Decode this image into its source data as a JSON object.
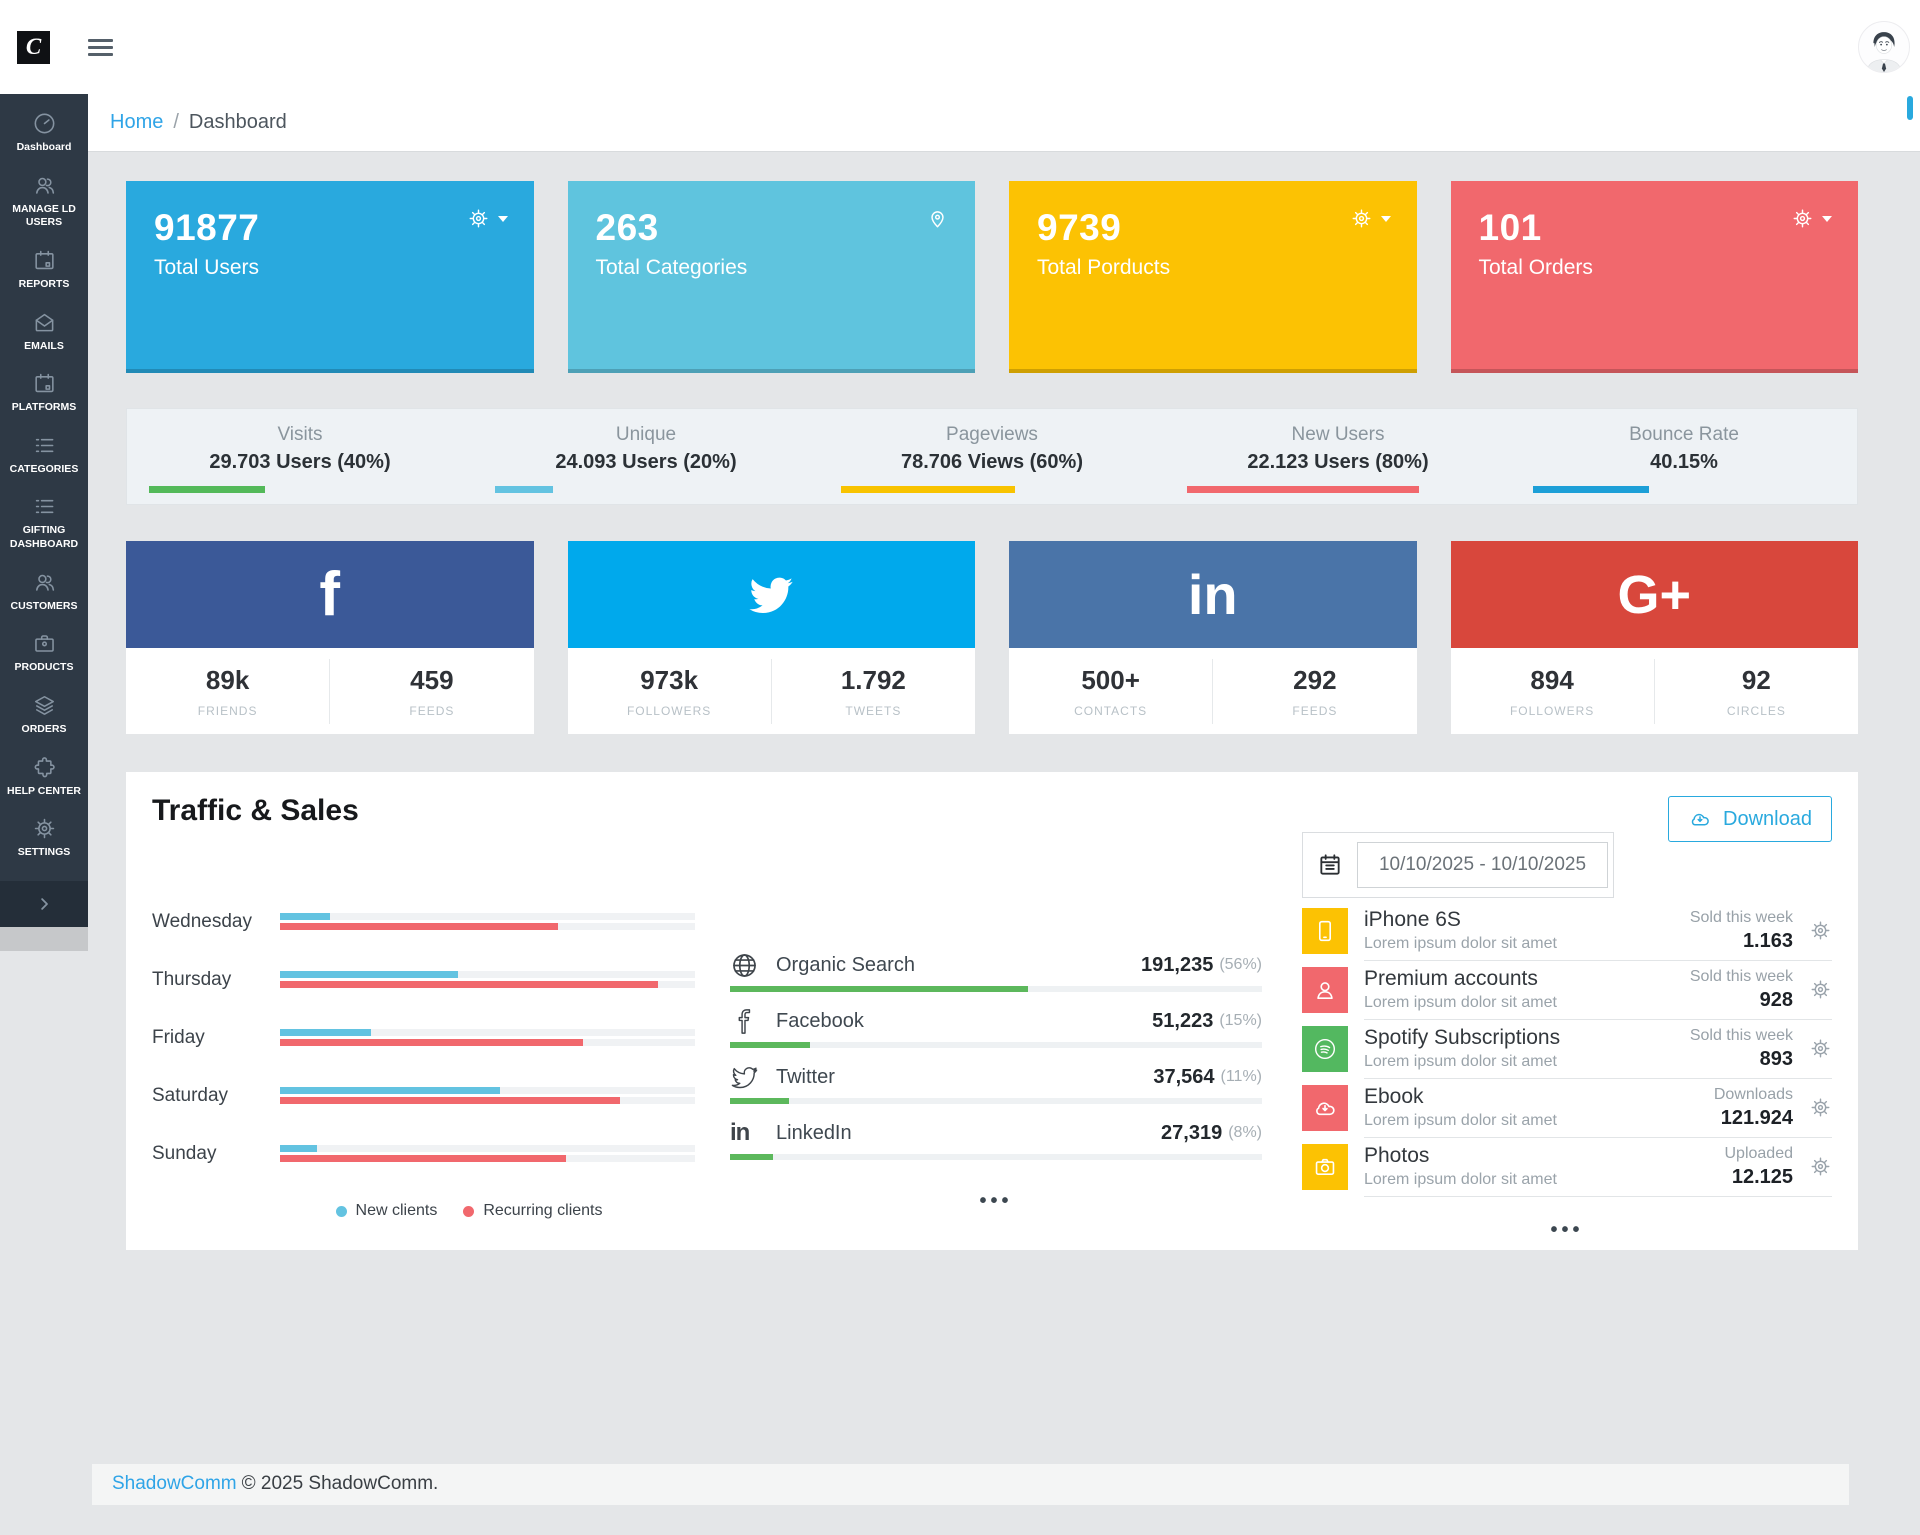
{
  "topbar": {
    "logo_letter": "C"
  },
  "breadcrumb": {
    "home": "Home",
    "separator": "/",
    "current": "Dashboard"
  },
  "sidebar": {
    "items": [
      {
        "label": "Dashboard"
      },
      {
        "label": "MANAGE LD USERS"
      },
      {
        "label": "REPORTS"
      },
      {
        "label": "EMAILS"
      },
      {
        "label": "PLATFORMS"
      },
      {
        "label": "CATEGORIES"
      },
      {
        "label": "GIFTING DASHBOARD"
      },
      {
        "label": "CUSTOMERS"
      },
      {
        "label": "PRODUCTS"
      },
      {
        "label": "ORDERS"
      },
      {
        "label": "HELP CENTER"
      },
      {
        "label": "SETTINGS"
      }
    ]
  },
  "colors": {
    "accent": "#29a9de",
    "chart_new": "#63c3e1",
    "chart_recurring": "#f1686d",
    "referral_bar": "#5cb85c"
  },
  "stat_cards": [
    {
      "value": "91877",
      "label": "Total Users",
      "color": "#29a9de"
    },
    {
      "value": "263",
      "label": "Total Categories",
      "color": "#5fc4de"
    },
    {
      "value": "9739",
      "label": "Total Porducts",
      "color": "#fcc203"
    },
    {
      "value": "101",
      "label": "Total Orders",
      "color": "#f1686d"
    }
  ],
  "metrics": [
    {
      "label": "Visits",
      "value": "29.703 Users (40%)",
      "pct": 40,
      "color": "#53b959"
    },
    {
      "label": "Unique",
      "value": "24.093 Users (20%)",
      "pct": 20,
      "color": "#63c3e1"
    },
    {
      "label": "Pageviews",
      "value": "78.706 Views (60%)",
      "pct": 60,
      "color": "#f8c300"
    },
    {
      "label": "New Users",
      "value": "22.123 Users (80%)",
      "pct": 80,
      "color": "#f1686d"
    },
    {
      "label": "Bounce Rate",
      "value": "40.15%",
      "pct": 40,
      "color": "#1c9fd7"
    }
  ],
  "social_cards": [
    {
      "network": "Facebook",
      "color": "#3b5998",
      "glyph": "f",
      "stats": [
        {
          "value": "89k",
          "label": "FRIENDS"
        },
        {
          "value": "459",
          "label": "FEEDS"
        }
      ]
    },
    {
      "network": "Twitter",
      "color": "#00a9ec",
      "glyph": "",
      "stats": [
        {
          "value": "973k",
          "label": "FOLLOWERS"
        },
        {
          "value": "1.792",
          "label": "TWEETS"
        }
      ]
    },
    {
      "network": "LinkedIn",
      "color": "#4a74a8",
      "glyph": "in",
      "stats": [
        {
          "value": "500+",
          "label": "CONTACTS"
        },
        {
          "value": "292",
          "label": "FEEDS"
        }
      ]
    },
    {
      "network": "Google Plus",
      "color": "#d8473c",
      "glyph": "G+",
      "stats": [
        {
          "value": "894",
          "label": "FOLLOWERS"
        },
        {
          "value": "92",
          "label": "CIRCLES"
        }
      ]
    }
  ],
  "traffic": {
    "title": "Traffic & Sales",
    "download_label": "Download",
    "date_range": "10/10/2025 - 10/10/2025",
    "ellipsis": "•••",
    "chart_data": {
      "type": "bar",
      "orientation": "horizontal",
      "categories": [
        "Wednesday",
        "Thursday",
        "Friday",
        "Saturday",
        "Sunday"
      ],
      "series": [
        {
          "name": "New clients",
          "values": [
            12,
            43,
            22,
            53,
            9
          ]
        },
        {
          "name": "Recurring clients",
          "values": [
            67,
            91,
            73,
            82,
            69
          ]
        }
      ],
      "unit": "percent of track width",
      "legend_position": "bottom"
    },
    "referrals": [
      {
        "name": "Organic Search",
        "value": "191,235",
        "pct_label": "(56%)",
        "pct": 56
      },
      {
        "name": "Facebook",
        "value": "51,223",
        "pct_label": "(15%)",
        "pct": 15
      },
      {
        "name": "Twitter",
        "value": "37,564",
        "pct_label": "(11%)",
        "pct": 11
      },
      {
        "name": "LinkedIn",
        "value": "27,319",
        "pct_label": "(8%)",
        "pct": 8
      }
    ],
    "products": [
      {
        "name": "iPhone 6S",
        "desc": "Lorem ipsum dolor sit amet",
        "metric_label": "Sold this week",
        "metric_value": "1.163",
        "color": "#fcc203"
      },
      {
        "name": "Premium accounts",
        "desc": "Lorem ipsum dolor sit amet",
        "metric_label": "Sold this week",
        "metric_value": "928",
        "color": "#f1686d"
      },
      {
        "name": "Spotify Subscriptions",
        "desc": "Lorem ipsum dolor sit amet",
        "metric_label": "Sold this week",
        "metric_value": "893",
        "color": "#53b860"
      },
      {
        "name": "Ebook",
        "desc": "Lorem ipsum dolor sit amet",
        "metric_label": "Downloads",
        "metric_value": "121.924",
        "color": "#f1686d"
      },
      {
        "name": "Photos",
        "desc": "Lorem ipsum dolor sit amet",
        "metric_label": "Uploaded",
        "metric_value": "12.125",
        "color": "#fcc203"
      }
    ]
  },
  "footer": {
    "link": "ShadowComm",
    "text": "© 2025 ShadowComm."
  }
}
